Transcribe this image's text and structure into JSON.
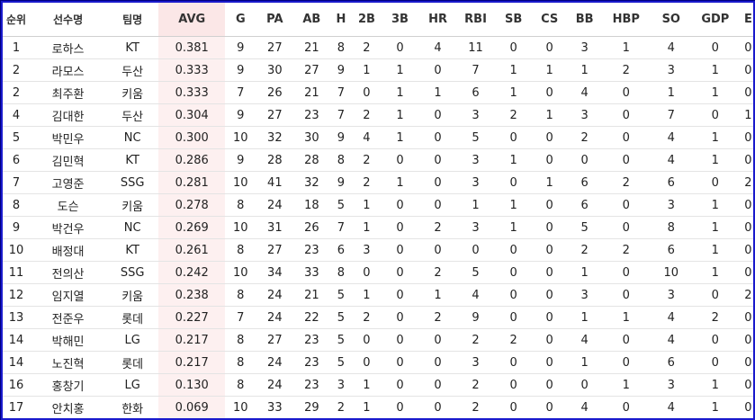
{
  "columns": [
    "순위",
    "선수명",
    "팀명",
    "AVG",
    "G",
    "PA",
    "AB",
    "H",
    "2B",
    "3B",
    "HR",
    "RBI",
    "SB",
    "CS",
    "BB",
    "HBP",
    "SO",
    "GDP",
    "E"
  ],
  "rows": [
    [
      "1",
      "로하스",
      "KT",
      "0.381",
      "9",
      "27",
      "21",
      "8",
      "2",
      "0",
      "4",
      "11",
      "0",
      "0",
      "3",
      "1",
      "4",
      "0",
      "0"
    ],
    [
      "2",
      "라모스",
      "두산",
      "0.333",
      "9",
      "30",
      "27",
      "9",
      "1",
      "1",
      "0",
      "7",
      "1",
      "1",
      "1",
      "2",
      "3",
      "1",
      "0"
    ],
    [
      "2",
      "최주환",
      "키움",
      "0.333",
      "7",
      "26",
      "21",
      "7",
      "0",
      "1",
      "1",
      "6",
      "1",
      "0",
      "4",
      "0",
      "1",
      "1",
      "0"
    ],
    [
      "4",
      "김대한",
      "두산",
      "0.304",
      "9",
      "27",
      "23",
      "7",
      "2",
      "1",
      "0",
      "3",
      "2",
      "1",
      "3",
      "0",
      "7",
      "0",
      "1"
    ],
    [
      "5",
      "박민우",
      "NC",
      "0.300",
      "10",
      "32",
      "30",
      "9",
      "4",
      "1",
      "0",
      "5",
      "0",
      "0",
      "2",
      "0",
      "4",
      "1",
      "0"
    ],
    [
      "6",
      "김민혁",
      "KT",
      "0.286",
      "9",
      "28",
      "28",
      "8",
      "2",
      "0",
      "0",
      "3",
      "1",
      "0",
      "0",
      "0",
      "4",
      "1",
      "0"
    ],
    [
      "7",
      "고영준",
      "SSG",
      "0.281",
      "10",
      "41",
      "32",
      "9",
      "2",
      "1",
      "0",
      "3",
      "0",
      "1",
      "6",
      "2",
      "6",
      "0",
      "2"
    ],
    [
      "8",
      "도슨",
      "키움",
      "0.278",
      "8",
      "24",
      "18",
      "5",
      "1",
      "0",
      "0",
      "1",
      "1",
      "0",
      "6",
      "0",
      "3",
      "1",
      "0"
    ],
    [
      "9",
      "박건우",
      "NC",
      "0.269",
      "10",
      "31",
      "26",
      "7",
      "1",
      "0",
      "2",
      "3",
      "1",
      "0",
      "5",
      "0",
      "8",
      "1",
      "0"
    ],
    [
      "10",
      "배정대",
      "KT",
      "0.261",
      "8",
      "27",
      "23",
      "6",
      "3",
      "0",
      "0",
      "0",
      "0",
      "0",
      "2",
      "2",
      "6",
      "1",
      "0"
    ],
    [
      "11",
      "전의산",
      "SSG",
      "0.242",
      "10",
      "34",
      "33",
      "8",
      "0",
      "0",
      "2",
      "5",
      "0",
      "0",
      "1",
      "0",
      "10",
      "1",
      "0"
    ],
    [
      "12",
      "임지열",
      "키움",
      "0.238",
      "8",
      "24",
      "21",
      "5",
      "1",
      "0",
      "1",
      "4",
      "0",
      "0",
      "3",
      "0",
      "3",
      "0",
      "2"
    ],
    [
      "13",
      "전준우",
      "롯데",
      "0.227",
      "7",
      "24",
      "22",
      "5",
      "2",
      "0",
      "2",
      "9",
      "0",
      "0",
      "1",
      "1",
      "4",
      "2",
      "0"
    ],
    [
      "14",
      "박해민",
      "LG",
      "0.217",
      "8",
      "27",
      "23",
      "5",
      "0",
      "0",
      "0",
      "2",
      "2",
      "0",
      "4",
      "0",
      "4",
      "0",
      "0"
    ],
    [
      "14",
      "노진혁",
      "롯데",
      "0.217",
      "8",
      "24",
      "23",
      "5",
      "0",
      "0",
      "0",
      "3",
      "0",
      "0",
      "1",
      "0",
      "6",
      "0",
      "0"
    ],
    [
      "16",
      "홍창기",
      "LG",
      "0.130",
      "8",
      "24",
      "23",
      "3",
      "1",
      "0",
      "0",
      "2",
      "0",
      "0",
      "0",
      "1",
      "3",
      "1",
      "0"
    ],
    [
      "17",
      "안치홍",
      "한화",
      "0.069",
      "10",
      "33",
      "29",
      "2",
      "1",
      "0",
      "0",
      "2",
      "0",
      "0",
      "4",
      "0",
      "4",
      "1",
      "0"
    ]
  ]
}
